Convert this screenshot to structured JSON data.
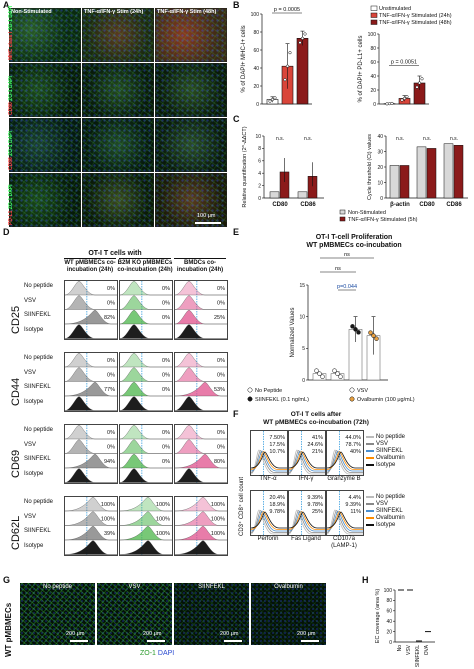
{
  "panelA": {
    "label": "A",
    "columns": [
      "Non-Stimulated",
      "TNF-α/IFN-γ Stim (24h)",
      "TNF-α/IFN-γ Stim (48h)"
    ],
    "rows": [
      {
        "marker": "MHC class I",
        "stain": "ZO-1 DAPI",
        "color": "#d04020"
      },
      {
        "marker": "CD80",
        "stain": "ZO-1 DAPI",
        "color": "#d04020"
      },
      {
        "marker": "CD86",
        "stain": "ZO-1 DAPI",
        "color": "#d04020"
      },
      {
        "marker": "PD-L1",
        "stain": "ZO-1 DAPI",
        "color": "#d04020"
      }
    ],
    "scalebar": "100 μm"
  },
  "panelB": {
    "label": "B",
    "legend": [
      "Unstimulated",
      "TNF-α/IFN-γ Stimulated (24h)",
      "TNF-α/IFN-γ Stimulated (48h)"
    ],
    "colors": [
      "#ffffff",
      "#d9453a",
      "#8b1a1a"
    ]
  },
  "panelC": {
    "label": "C"
  },
  "panelD": {
    "label": "D",
    "title": "OT-I T cells with",
    "groups": [
      "WT pMBMECs co-incubation (24h)",
      "B2M KO pMBMECs co-incubation (24h)",
      "BMDCs co-incubation (24h)"
    ],
    "conditions": [
      "No peptide",
      "VSV",
      "SIINFEKL",
      "Isotype"
    ],
    "markers": [
      "CD25",
      "CD44",
      "CD69",
      "CD62L"
    ],
    "values": [
      [
        [
          "0%",
          "0%",
          "82%"
        ],
        [
          "0%",
          "0%",
          "0%"
        ],
        [
          "0%",
          "0%",
          "25%"
        ]
      ],
      [
        [
          "0%",
          "0%",
          "77%"
        ],
        [
          "0%",
          "0%",
          "0%"
        ],
        [
          "0%",
          "0%",
          "53%"
        ]
      ],
      [
        [
          "0%",
          "0%",
          "94%"
        ],
        [
          "0%",
          "0%",
          "0%"
        ],
        [
          "0%",
          "0%",
          "80%"
        ]
      ],
      [
        [
          "100%",
          "100%",
          "39%"
        ],
        [
          "100%",
          "100%",
          "100%"
        ],
        [
          "100%",
          "100%",
          "100%"
        ]
      ]
    ],
    "colors": [
      "#777777",
      "#4bb54a",
      "#e0508c"
    ]
  },
  "panelE": {
    "label": "E"
  },
  "panelF": {
    "label": "F",
    "title": "OT-I T cells after",
    "subtitle": "WT pMBMECs co-incubation (72h)",
    "ylabel": "CD3⁺ CD8⁺ cell count",
    "top_labels": [
      "TNF-α",
      "IFN-γ",
      "Granzyme B"
    ],
    "top_values": [
      [
        "7.50%",
        "17.5%",
        "10.7%"
      ],
      [
        "41%",
        "24.6%",
        "21%"
      ],
      [
        "44.0%",
        "78.7%",
        "40%"
      ]
    ],
    "bottom_labels": [
      "Perforin",
      "Fas Ligand",
      "CD107a\n(LAMP-1)"
    ],
    "bottom_values": [
      [
        "20.4%",
        "18.9%",
        "9.78%"
      ],
      [
        "9.39%",
        "9.78%",
        "25%"
      ],
      [
        "4.4%",
        "9.39%",
        "11%"
      ]
    ],
    "legend": [
      "No peptide",
      "VSV",
      "SIINFEKL",
      "Ovalbumin",
      "Isotype"
    ],
    "legend_colors": [
      "#bbbbbb",
      "#888888",
      "#4a8fd0",
      "#ff8c00",
      "#111111"
    ]
  },
  "panelG": {
    "label": "G",
    "rowlabel": "WT pMBMECs",
    "columns": [
      "No peptide",
      "VSV",
      "SIINFEKL",
      "Ovalbumin"
    ],
    "stain_zo": "ZO-1",
    "stain_dapi": "DAPI",
    "scalebar": "200 μm"
  },
  "panelH": {
    "label": "H"
  },
  "chart_data": [
    {
      "type": "bar",
      "panel": "B-left",
      "ylabel": "% of DAPI+ MHC-I+ cells",
      "categories": [
        "Unstimulated",
        "24h",
        "48h"
      ],
      "values": [
        5,
        42,
        73
      ],
      "errors": [
        3,
        25,
        8
      ],
      "ylim": [
        0,
        100
      ],
      "yticks": [
        "0",
        "20",
        "40",
        "60",
        "80",
        "100"
      ],
      "annotation": "p = 0.0005"
    },
    {
      "type": "bar",
      "panel": "B-right",
      "ylabel": "% of DAPI+ PD-L1+ cells",
      "categories": [
        "Unstimulated",
        "24h",
        "48h"
      ],
      "values": [
        0.5,
        8,
        30
      ],
      "errors": [
        0.5,
        4,
        10
      ],
      "ylim": [
        0,
        100
      ],
      "yticks": [
        "0",
        "20",
        "40",
        "60",
        "80",
        "100"
      ],
      "annotation": "p = 0.0051"
    },
    {
      "type": "bar",
      "panel": "C-left",
      "ylabel": "Relative quantification (2^-ΔΔCT)",
      "categories": [
        "CD80",
        "CD86"
      ],
      "series": [
        {
          "name": "Non-Stimulated",
          "values": [
            1,
            1
          ]
        },
        {
          "name": "TNF-α/IFN-γ Stimulated (5h)",
          "values": [
            4.2,
            3.5
          ]
        }
      ],
      "ylim": [
        0,
        10
      ],
      "yticks": [
        "0",
        "2",
        "4",
        "6",
        "8",
        "10"
      ],
      "annotation": "n.s."
    },
    {
      "type": "bar",
      "panel": "C-right",
      "ylabel": "Cycle threshold (Ct) values",
      "categories": [
        "β-actin",
        "CD80",
        "CD86"
      ],
      "series": [
        {
          "name": "Non-Stimulated",
          "values": [
            21,
            33,
            35
          ]
        },
        {
          "name": "TNF-α/IFN-γ Stimulated (5h)",
          "values": [
            21,
            32,
            34
          ]
        }
      ],
      "ylim": [
        0,
        40
      ],
      "yticks": [
        "0",
        "10",
        "20",
        "30",
        "40"
      ],
      "annotation": "n.s.",
      "legend": [
        "Non-Stimulated",
        "TNF-α/IFN-γ Stimulated (5h)"
      ]
    },
    {
      "type": "bar",
      "panel": "E",
      "title": "OT-I T-cell Proliferation",
      "subtitle": "WT pMBMECs co-incubation",
      "ylabel": "Normalized Values",
      "categories": [
        "No Peptide",
        "VSV",
        "SIINFEKL",
        "Ovalbumin"
      ],
      "values": [
        1,
        1,
        8,
        7
      ],
      "errors": [
        0,
        0.3,
        2,
        3
      ],
      "ylim": [
        0,
        15
      ],
      "yticks": [
        "0",
        "5",
        "10",
        "15"
      ],
      "annotations": [
        "ns",
        "ns",
        "p=0.044"
      ],
      "legend": [
        "No Peptide",
        "VSV",
        "SIINFEKL (0.1 ng/mL)",
        "Ovalbumin (100 μg/mL)"
      ]
    },
    {
      "type": "bar",
      "panel": "H",
      "ylabel": "EC coverage (area %)",
      "categories": [
        "No",
        "VSV",
        "SIINFEKL",
        "OVA"
      ],
      "values": [
        100,
        100,
        2,
        20
      ],
      "ylim": [
        0,
        100
      ],
      "yticks": [
        "0",
        "20",
        "40",
        "60",
        "80",
        "100"
      ]
    }
  ]
}
